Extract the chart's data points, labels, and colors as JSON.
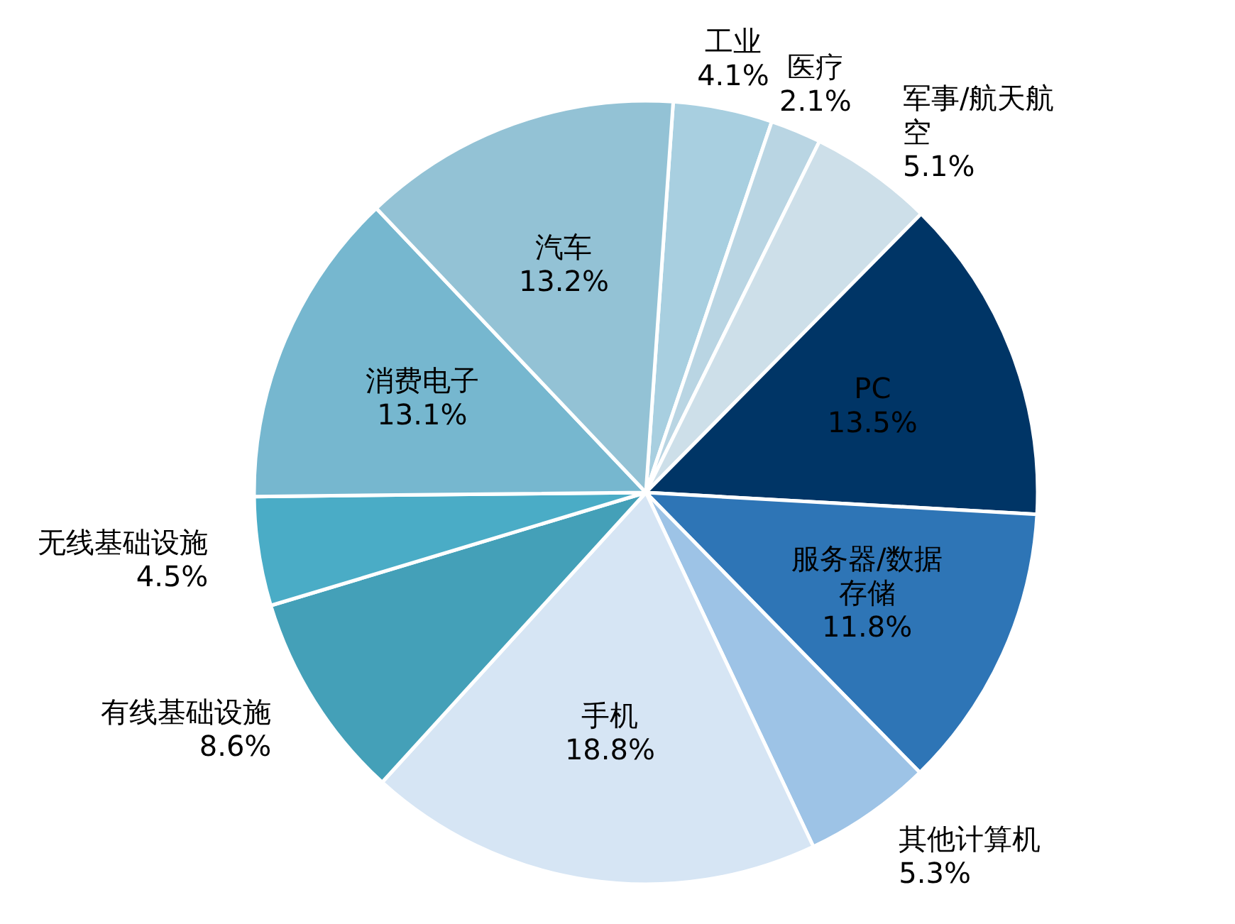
{
  "chart_data": {
    "type": "pie",
    "categories": [
      "工业",
      "医疗",
      "军事/航天航空",
      "PC",
      "服务器/数据存储",
      "其他计算机",
      "手机",
      "有线基础设施",
      "无线基础设施",
      "消费电子",
      "汽车"
    ],
    "values": [
      4.1,
      2.1,
      5.1,
      13.5,
      11.8,
      5.3,
      18.8,
      8.6,
      4.5,
      13.1,
      13.2
    ],
    "value_labels": [
      "4.1%",
      "2.1%",
      "5.1%",
      "13.5%",
      "11.8%",
      "5.3%",
      "18.8%",
      "8.6%",
      "4.5%",
      "13.1%",
      "13.2%"
    ],
    "colors": [
      "#a8cfe0",
      "#b9d5e3",
      "#cddfe9",
      "#003566",
      "#2e75b6",
      "#9dc3e6",
      "#d6e5f4",
      "#44a0b8",
      "#4aacc6",
      "#76b7cf",
      "#93c2d5"
    ]
  }
}
